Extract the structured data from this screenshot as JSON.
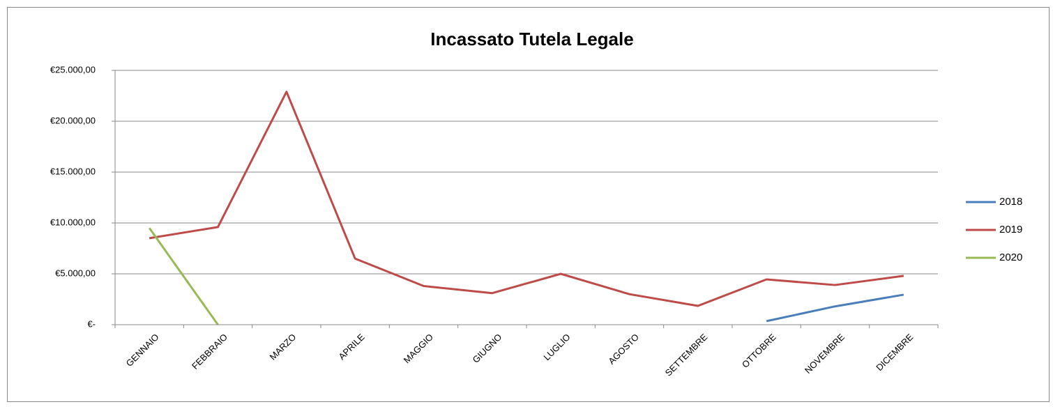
{
  "chart_data": {
    "type": "line",
    "title": "Incassato Tutela Legale",
    "categories": [
      "GENNAIO",
      "FEBBRAIO",
      "MARZO",
      "APRILE",
      "MAGGIO",
      "GIUGNO",
      "LUGLIO",
      "AGOSTO",
      "SETTEMBRE",
      "OTTOBRE",
      "NOVEMBRE",
      "DICEMBRE"
    ],
    "series": [
      {
        "name": "2018",
        "color": "#4a7ebb",
        "values": [
          null,
          null,
          null,
          null,
          null,
          null,
          null,
          null,
          null,
          350,
          1800,
          2950
        ]
      },
      {
        "name": "2019",
        "color": "#be4b48",
        "values": [
          8500,
          9600,
          22900,
          6500,
          3800,
          3100,
          5000,
          3000,
          1850,
          4450,
          3900,
          4800
        ]
      },
      {
        "name": "2020",
        "color": "#98b954",
        "values": [
          9500,
          0,
          null,
          null,
          null,
          null,
          null,
          null,
          null,
          null,
          null,
          null
        ]
      }
    ],
    "ylim": [
      0,
      25000
    ],
    "yticks": [
      {
        "value": 0,
        "label": "€-"
      },
      {
        "value": 5000,
        "label": "€5.000,00"
      },
      {
        "value": 10000,
        "label": "€10.000,00"
      },
      {
        "value": 15000,
        "label": "€15.000,00"
      },
      {
        "value": 20000,
        "label": "€20.000,00"
      },
      {
        "value": 25000,
        "label": "€25.000,00"
      }
    ],
    "grid": true,
    "legend": "right"
  }
}
